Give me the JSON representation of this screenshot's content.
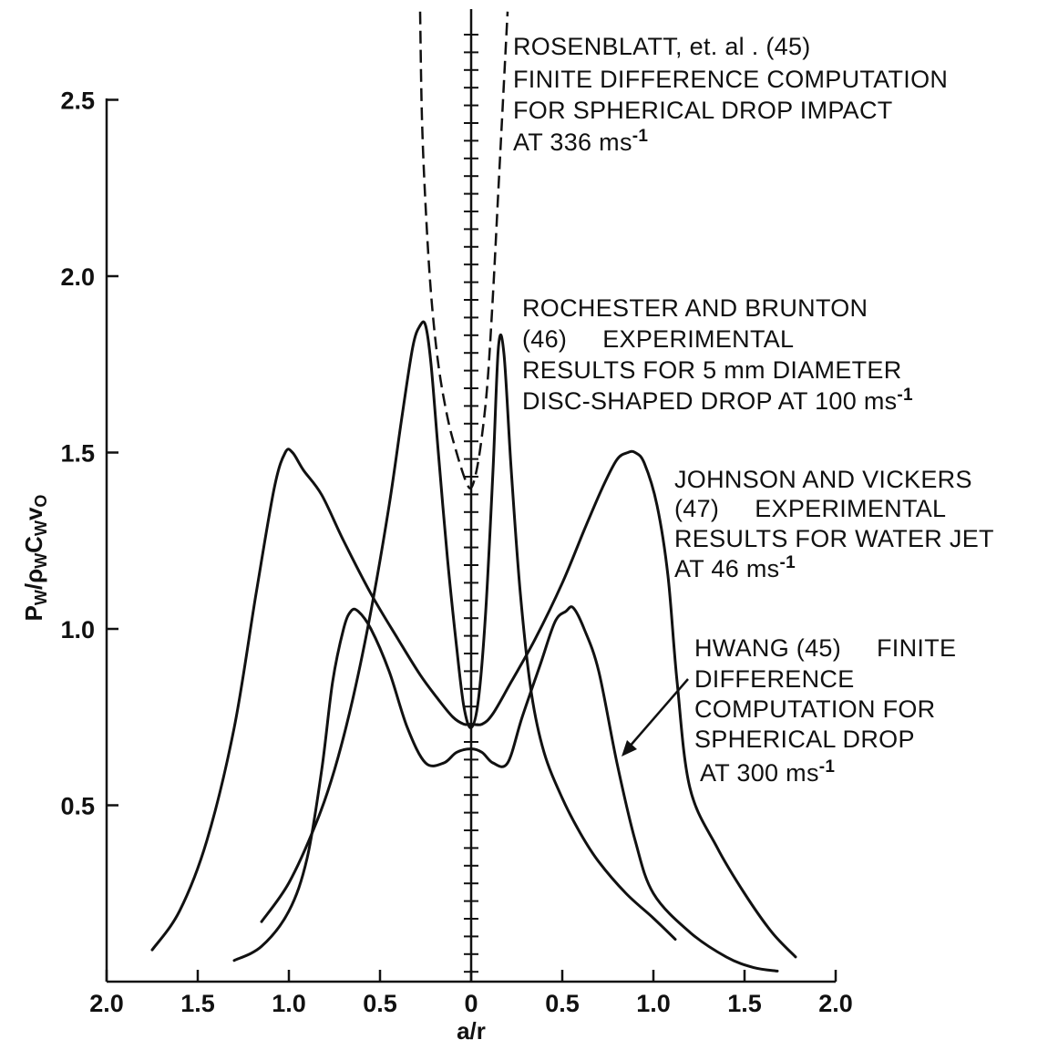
{
  "chart_data": {
    "type": "line",
    "title": "",
    "xlabel": "a/r",
    "ylabel_main": "P",
    "ylabel_parts": [
      {
        "t": "P",
        "sub": false
      },
      {
        "t": "W",
        "sub": true
      },
      {
        "t": "/ρ",
        "sub": false
      },
      {
        "t": "W",
        "sub": true
      },
      {
        "t": "C",
        "sub": false
      },
      {
        "t": "W",
        "sub": true
      },
      {
        "t": "v",
        "sub": false
      },
      {
        "t": "O",
        "sub": true
      }
    ],
    "xlim": [
      -2.0,
      2.0
    ],
    "ylim": [
      0,
      2.75
    ],
    "x_ticks": [
      {
        "v": -2.0,
        "label": "2.0"
      },
      {
        "v": -1.5,
        "label": "1.5"
      },
      {
        "v": -1.0,
        "label": "1.0"
      },
      {
        "v": -0.5,
        "label": "0.5"
      },
      {
        "v": 0.0,
        "label": "0"
      },
      {
        "v": 0.5,
        "label": "0.5"
      },
      {
        "v": 1.0,
        "label": "1.0"
      },
      {
        "v": 1.5,
        "label": "1.5"
      },
      {
        "v": 2.0,
        "label": "2.0"
      }
    ],
    "y_ticks": [
      {
        "v": 0.5,
        "label": "0.5"
      },
      {
        "v": 1.0,
        "label": "1.0"
      },
      {
        "v": 1.5,
        "label": "1.5"
      },
      {
        "v": 2.0,
        "label": "2.0"
      },
      {
        "v": 2.5,
        "label": "2.5"
      }
    ],
    "series": [
      {
        "key": "rosenblatt",
        "style": "dashed",
        "x": [
          -0.28,
          -0.27,
          -0.25,
          -0.22,
          -0.18,
          -0.13,
          -0.08,
          -0.03,
          0.0,
          0.03,
          0.06,
          0.09,
          0.12,
          0.15,
          0.18,
          0.2
        ],
        "y": [
          2.75,
          2.45,
          2.2,
          1.95,
          1.75,
          1.6,
          1.5,
          1.42,
          1.4,
          1.45,
          1.55,
          1.7,
          1.95,
          2.25,
          2.55,
          2.75
        ]
      },
      {
        "key": "rochester",
        "style": "solid",
        "x": [
          -1.15,
          -1.0,
          -0.85,
          -0.75,
          -0.65,
          -0.55,
          -0.45,
          -0.38,
          -0.32,
          -0.28,
          -0.25,
          -0.22,
          -0.18,
          -0.13,
          -0.08,
          -0.04,
          0.0,
          0.04,
          0.08,
          0.12,
          0.15,
          0.18,
          0.22,
          0.27,
          0.33,
          0.4,
          0.5,
          0.6,
          0.7,
          0.85,
          1.0,
          1.12
        ],
        "y": [
          0.17,
          0.28,
          0.45,
          0.6,
          0.8,
          1.05,
          1.35,
          1.6,
          1.8,
          1.86,
          1.86,
          1.75,
          1.5,
          1.2,
          0.95,
          0.78,
          0.72,
          0.8,
          1.05,
          1.45,
          1.8,
          1.78,
          1.45,
          1.1,
          0.82,
          0.65,
          0.52,
          0.42,
          0.34,
          0.25,
          0.18,
          0.12
        ]
      },
      {
        "key": "johnson",
        "style": "solid",
        "x": [
          -1.75,
          -1.6,
          -1.45,
          -1.3,
          -1.18,
          -1.08,
          -1.02,
          -0.98,
          -0.92,
          -0.82,
          -0.7,
          -0.55,
          -0.4,
          -0.28,
          -0.18,
          -0.1,
          -0.04,
          0.0,
          0.06,
          0.12,
          0.22,
          0.35,
          0.5,
          0.62,
          0.72,
          0.8,
          0.86,
          0.9,
          0.95,
          1.02,
          1.08,
          1.13,
          1.2,
          1.35,
          1.5,
          1.65,
          1.78
        ],
        "y": [
          0.09,
          0.2,
          0.4,
          0.72,
          1.1,
          1.4,
          1.5,
          1.5,
          1.45,
          1.38,
          1.25,
          1.1,
          0.97,
          0.87,
          0.8,
          0.75,
          0.73,
          0.73,
          0.73,
          0.76,
          0.85,
          0.97,
          1.13,
          1.28,
          1.4,
          1.48,
          1.5,
          1.5,
          1.47,
          1.35,
          1.15,
          0.85,
          0.55,
          0.38,
          0.25,
          0.14,
          0.07
        ]
      },
      {
        "key": "hwang",
        "style": "solid",
        "x": [
          -1.3,
          -1.15,
          -1.0,
          -0.9,
          -0.82,
          -0.76,
          -0.7,
          -0.66,
          -0.62,
          -0.55,
          -0.45,
          -0.35,
          -0.25,
          -0.15,
          -0.08,
          0.0,
          0.06,
          0.12,
          0.2,
          0.28,
          0.38,
          0.46,
          0.52,
          0.56,
          0.62,
          0.7,
          0.8,
          0.9,
          1.0,
          1.2,
          1.4,
          1.55,
          1.68
        ],
        "y": [
          0.06,
          0.1,
          0.2,
          0.35,
          0.6,
          0.85,
          1.0,
          1.05,
          1.05,
          1.0,
          0.88,
          0.72,
          0.62,
          0.62,
          0.65,
          0.66,
          0.65,
          0.62,
          0.62,
          0.75,
          0.9,
          1.02,
          1.05,
          1.06,
          1.0,
          0.88,
          0.62,
          0.4,
          0.25,
          0.14,
          0.07,
          0.04,
          0.03
        ]
      }
    ],
    "annotations": {
      "rosenblatt": [
        "ROSENBLATT, et. al . (45)",
        "FINITE DIFFERENCE COMPUTATION",
        "FOR SPHERICAL DROP IMPACT",
        "AT 336 ms-1"
      ],
      "rochester": [
        "ROCHESTER AND BRUNTON",
        "(46)     EXPERIMENTAL",
        "RESULTS FOR 5 mm DIAMETER",
        "DISC-SHAPED DROP AT 100 ms-1"
      ],
      "johnson": [
        "JOHNSON AND VICKERS",
        "(47)     EXPERIMENTAL",
        "RESULTS FOR WATER JET",
        "AT 46 ms-1"
      ],
      "hwang": [
        "HWANG (45)     FINITE",
        "DIFFERENCE",
        "COMPUTATION FOR",
        "SPHERICAL DROP",
        "AT 300 ms-1"
      ]
    },
    "grid": false,
    "legend": "none"
  }
}
